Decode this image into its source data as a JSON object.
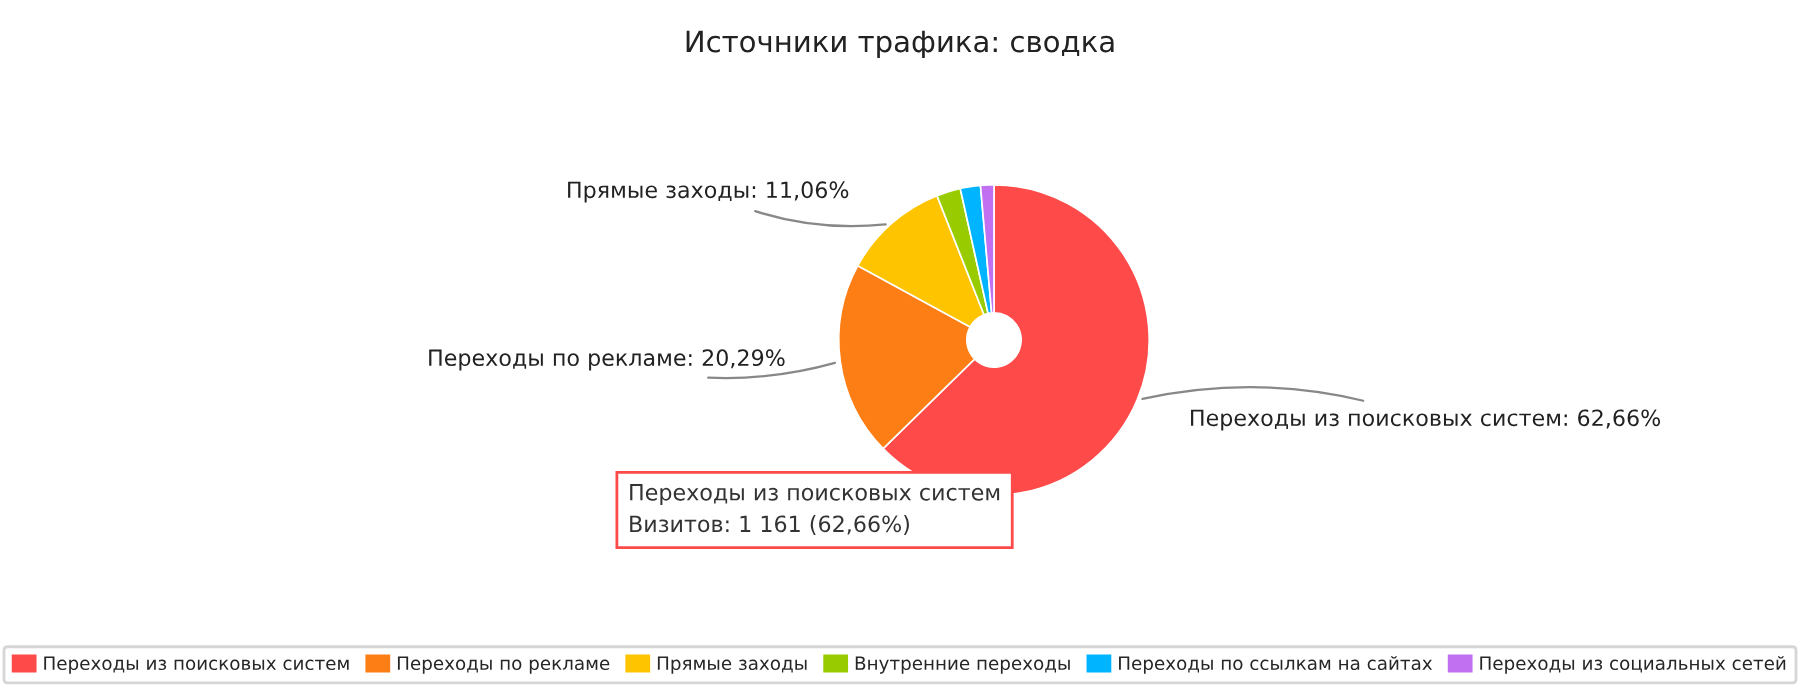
{
  "chart_data": {
    "type": "donut",
    "title": "Источники трафика: сводка",
    "categories": [
      "Переходы из поисковых систем",
      "Переходы по рекламе",
      "Прямые заходы",
      "Внутренние переходы",
      "Переходы по ссылкам на сайтах",
      "Переходы из социальных сетей"
    ],
    "values": [
      62.66,
      20.29,
      11.06,
      2.5,
      2.1,
      1.39
    ],
    "colors": [
      "#ff4a4a",
      "#fd7e14",
      "#ffc400",
      "#99cc00",
      "#00b4ff",
      "#c070f0"
    ],
    "value_labels": [
      "Переходы из поисковых систем: 62,66%",
      "Переходы по рекламе: 20,29%",
      "Прямые заходы: 11,06%",
      null,
      null,
      null
    ],
    "annotations": [
      "Переходы из поисковых систем\nВизитов: 1 161 (62,66%)"
    ],
    "legend": "bottom"
  }
}
